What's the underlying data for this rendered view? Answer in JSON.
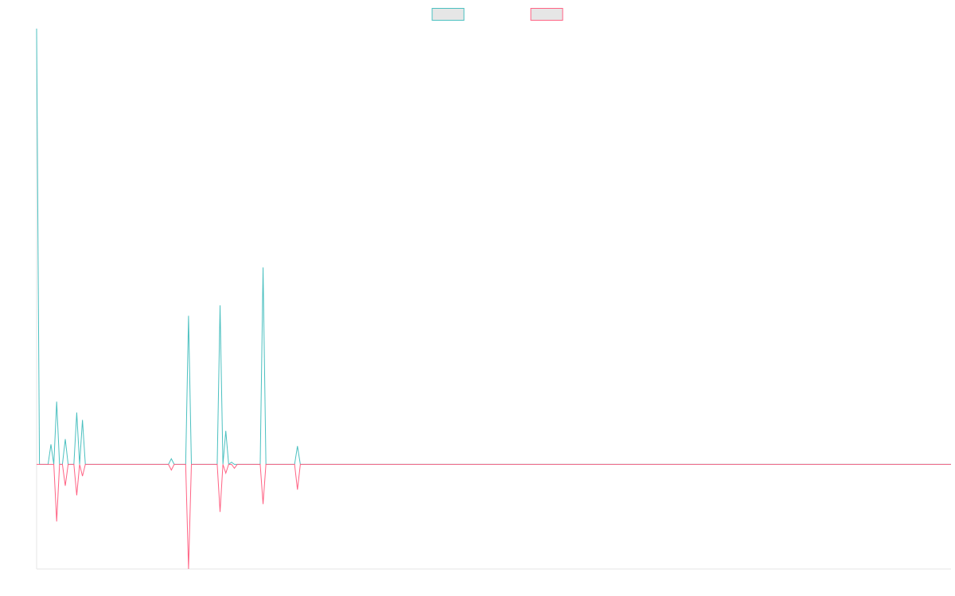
{
  "chart_data": {
    "type": "line",
    "ylim": [
      -24,
      100
    ],
    "legend": "top",
    "legend_fill": "#e6e6e6",
    "axis_color": "#e5e5e5",
    "series": [
      {
        "color": "#4bc0c0",
        "values": [
          100,
          0,
          0,
          0,
          0,
          4.6,
          0,
          14.4,
          0,
          0,
          5.8,
          0,
          0,
          0,
          11.9,
          0,
          10.2,
          0,
          0,
          0,
          0,
          0,
          0,
          0,
          0,
          0,
          0,
          0,
          0,
          0,
          0,
          0,
          0,
          0,
          0,
          0,
          0,
          0,
          0,
          0,
          0,
          0,
          0,
          0,
          0,
          0,
          0,
          1.3,
          0,
          0,
          0,
          0,
          0,
          34.1,
          0,
          0,
          0,
          0,
          0,
          0,
          0,
          0,
          0,
          0,
          36.5,
          0,
          7.7,
          0,
          0.5,
          0,
          0,
          0,
          0,
          0,
          0,
          0,
          0,
          0,
          0,
          45.2,
          0,
          0,
          0,
          0,
          0,
          0,
          0,
          0,
          0,
          0,
          0,
          4.2,
          0,
          0,
          0,
          0,
          0,
          0,
          0,
          0,
          0,
          0,
          0,
          0,
          0,
          0,
          0,
          0,
          0,
          0,
          0,
          0,
          0,
          0,
          0,
          0,
          0,
          0,
          0,
          0,
          0,
          0,
          0,
          0,
          0,
          0,
          0,
          0,
          0,
          0,
          0,
          0,
          0,
          0,
          0,
          0,
          0,
          0,
          0,
          0,
          0,
          0,
          0,
          0,
          0,
          0,
          0,
          0,
          0,
          0,
          0,
          0,
          0,
          0,
          0,
          0,
          0,
          0,
          0,
          0,
          0,
          0,
          0,
          0,
          0,
          0,
          0,
          0,
          0,
          0,
          0,
          0,
          0,
          0,
          0,
          0,
          0,
          0,
          0,
          0,
          0,
          0,
          0,
          0,
          0,
          0,
          0,
          0,
          0,
          0,
          0,
          0,
          0,
          0,
          0,
          0,
          0,
          0,
          0,
          0,
          0,
          0,
          0,
          0,
          0,
          0,
          0,
          0,
          0,
          0,
          0,
          0,
          0,
          0,
          0,
          0,
          0,
          0,
          0,
          0,
          0,
          0,
          0,
          0,
          0,
          0,
          0,
          0,
          0,
          0,
          0,
          0,
          0,
          0,
          0,
          0,
          0,
          0,
          0,
          0,
          0,
          0,
          0,
          0,
          0,
          0,
          0,
          0,
          0,
          0,
          0,
          0,
          0,
          0,
          0,
          0,
          0,
          0,
          0,
          0,
          0,
          0,
          0,
          0,
          0,
          0,
          0,
          0,
          0,
          0,
          0,
          0,
          0,
          0,
          0,
          0,
          0,
          0,
          0,
          0,
          0,
          0,
          0,
          0,
          0,
          0,
          0,
          0,
          0,
          0,
          0,
          0,
          0,
          0,
          0,
          0,
          0,
          0,
          0,
          0,
          0,
          0,
          0,
          0,
          0,
          0,
          0,
          0,
          0,
          0,
          0,
          0,
          0,
          0,
          0,
          0,
          0,
          0,
          0,
          0
        ]
      },
      {
        "color": "#ff6384",
        "values": [
          0,
          0,
          0,
          0,
          0,
          0,
          0,
          -13.1,
          0,
          0,
          -4.9,
          0,
          0,
          0,
          -7.1,
          0,
          -2.7,
          0,
          0,
          0,
          0,
          0,
          0,
          0,
          0,
          0,
          0,
          0,
          0,
          0,
          0,
          0,
          0,
          0,
          0,
          0,
          0,
          0,
          0,
          0,
          0,
          0,
          0,
          0,
          0,
          0,
          0,
          -1.3,
          0,
          0,
          0,
          0,
          0,
          -24,
          0,
          0,
          0,
          0,
          0,
          0,
          0,
          0,
          0,
          0,
          -10.9,
          0,
          -2,
          0,
          0,
          -0.9,
          0,
          0,
          0,
          0,
          0,
          0,
          0,
          0,
          0,
          -9.1,
          0,
          0,
          0,
          0,
          0,
          0,
          0,
          0,
          0,
          0,
          0,
          -5.8,
          0,
          0,
          0,
          0,
          0,
          0,
          0,
          0,
          0,
          0,
          0,
          0,
          0,
          0,
          0,
          0,
          0,
          0,
          0,
          0,
          0,
          0,
          0,
          0,
          0,
          0,
          0,
          0,
          0,
          0,
          0,
          0,
          0,
          0,
          0,
          0,
          0,
          0,
          0,
          0,
          0,
          0,
          0,
          0,
          0,
          0,
          0,
          0,
          0,
          0,
          0,
          0,
          0,
          0,
          0,
          0,
          0,
          0,
          0,
          0,
          0,
          0,
          0,
          0,
          0,
          0,
          0,
          0,
          0,
          0,
          0,
          0,
          0,
          0,
          0,
          0,
          0,
          0,
          0,
          0,
          0,
          0,
          0,
          0,
          0,
          0,
          0,
          0,
          0,
          0,
          0,
          0,
          0,
          0,
          0,
          0,
          0,
          0,
          0,
          0,
          0,
          0,
          0,
          0,
          0,
          0,
          0,
          0,
          0,
          0,
          0,
          0,
          0,
          0,
          0,
          0,
          0,
          0,
          0,
          0,
          0,
          0,
          0,
          0,
          0,
          0,
          0,
          0,
          0,
          0,
          0,
          0,
          0,
          0,
          0,
          0,
          0,
          0,
          0,
          0,
          0,
          0,
          0,
          0,
          0,
          0,
          0,
          0,
          0,
          0,
          0,
          0,
          0,
          0,
          0,
          0,
          0,
          0,
          0,
          0,
          0,
          0,
          0,
          0,
          0,
          0,
          0,
          0,
          0,
          0,
          0,
          0,
          0,
          0,
          0,
          0,
          0,
          0,
          0,
          0,
          0,
          0,
          0,
          0,
          0,
          0,
          0,
          0,
          0,
          0,
          0,
          0,
          0,
          0,
          0,
          0,
          0,
          0,
          0,
          0,
          0,
          0,
          0,
          0,
          0,
          0,
          0,
          0,
          0,
          0,
          0,
          0,
          0,
          0,
          0,
          0,
          0,
          0,
          0,
          0,
          0,
          0,
          0,
          0,
          0,
          0,
          0,
          0
        ]
      }
    ]
  }
}
